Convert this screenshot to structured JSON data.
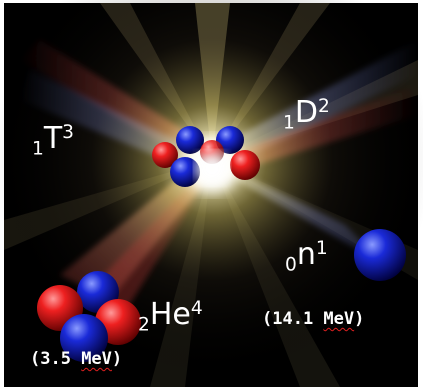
{
  "labels": {
    "tritium": {
      "sub": "1",
      "sym": "T",
      "sup": "3"
    },
    "deuterium": {
      "sub": "1",
      "sym": "D",
      "sup": "2"
    },
    "helium": {
      "sub": "2",
      "sym": "He",
      "sup": "4"
    },
    "neutron": {
      "sub": "0",
      "sym": "n",
      "sup": "1"
    }
  },
  "energies": {
    "helium": {
      "open": "(3.5 ",
      "unit": "MeV",
      "close": ")"
    },
    "neutron": {
      "open": "(14.1 ",
      "unit": "MeV",
      "close": ")"
    }
  },
  "colors": {
    "background": "#000000",
    "proton": "#e01818",
    "neutron_particle": "#1a2ad8",
    "flash": "#fffbe0",
    "text": "#ffffff"
  }
}
